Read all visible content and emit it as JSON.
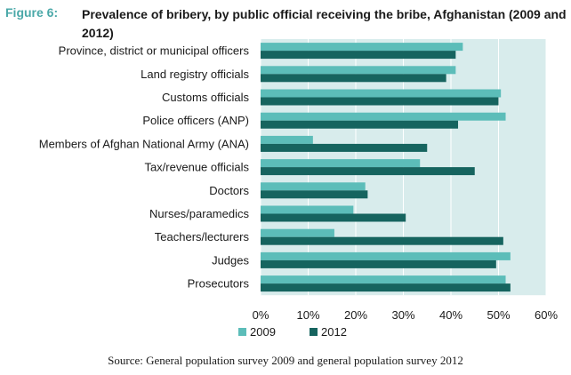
{
  "figure": {
    "label": "Figure 6:",
    "title": "Prevalence of bribery, by public official receiving the bribe, Afghanistan (2009 and 2012)"
  },
  "source": "Source: General population survey 2009 and general population survey 2012",
  "chart_data": {
    "type": "bar",
    "orientation": "horizontal",
    "categories": [
      "Province, district or municipal officers",
      "Land registry officials",
      "Customs officials",
      "Police officers (ANP)",
      "Members of Afghan National Army (ANA)",
      "Tax/revenue officials",
      "Doctors",
      "Nurses/paramedics",
      "Teachers/lecturers",
      "Judges",
      "Prosecutors"
    ],
    "series": [
      {
        "name": "2009",
        "color": "#5cbdb9",
        "values": [
          42.5,
          41,
          50.5,
          51.5,
          11,
          33.5,
          22,
          19.5,
          15.5,
          52.5,
          51.5
        ]
      },
      {
        "name": "2012",
        "color": "#16645f",
        "values": [
          41,
          39,
          50,
          41.5,
          35,
          45,
          22.5,
          30.5,
          51,
          49.5,
          52.5
        ]
      }
    ],
    "xlim": [
      0,
      60
    ],
    "xticks": [
      "0%",
      "10%",
      "20%",
      "30%",
      "40%",
      "50%",
      "60%"
    ],
    "grid": true,
    "legend": "bottom",
    "plot_background": "#d8ecec"
  }
}
